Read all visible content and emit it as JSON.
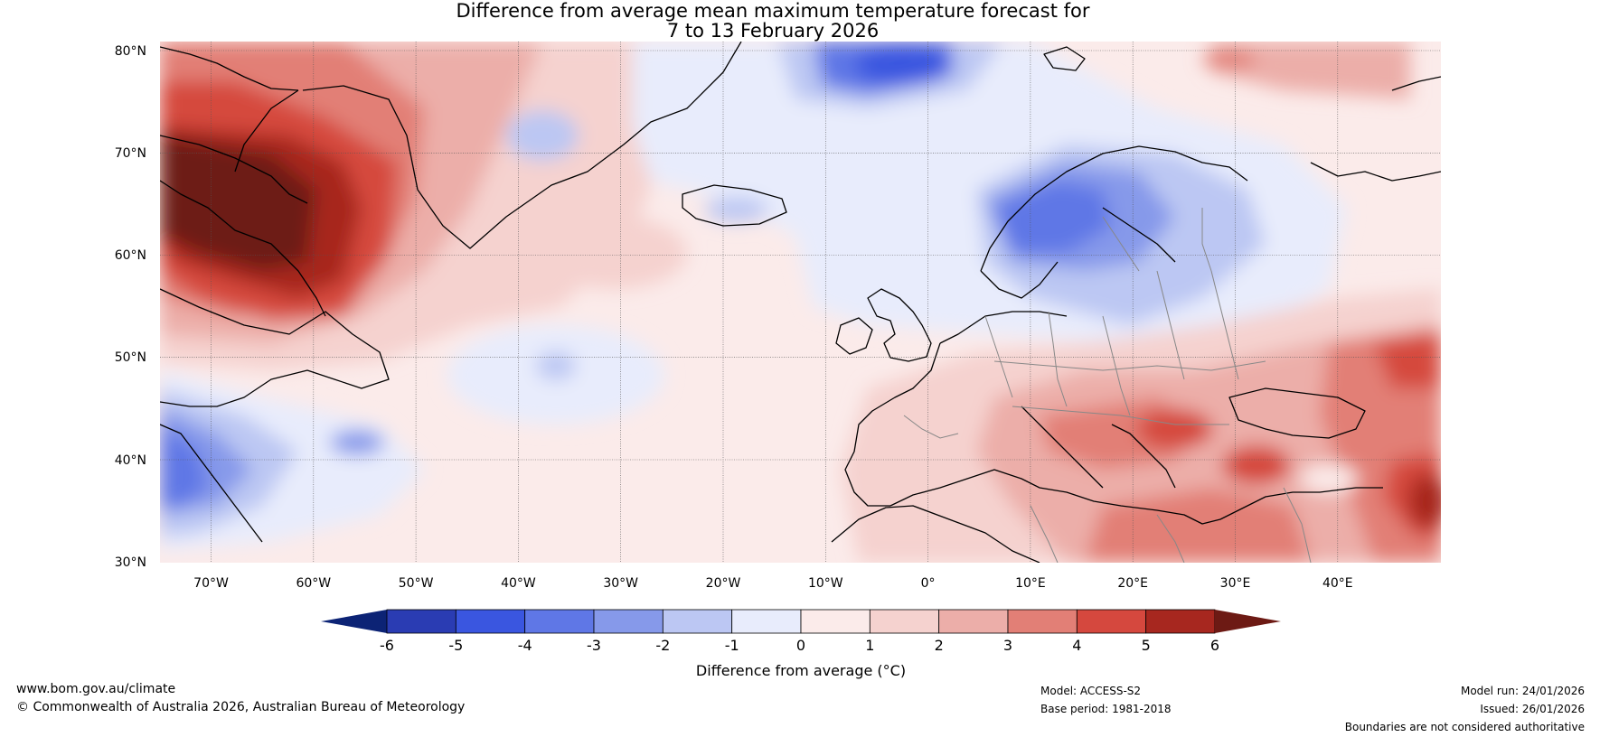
{
  "title": {
    "line1": "Difference from average mean maximum temperature forecast for",
    "line2": "7 to 13 February 2026"
  },
  "map": {
    "latitude_labels": [
      "80°N",
      "70°N",
      "60°N",
      "50°N",
      "40°N",
      "30°N"
    ],
    "longitude_labels": [
      "70°W",
      "60°W",
      "50°W",
      "40°W",
      "30°W",
      "20°W",
      "10°W",
      "0°",
      "10°E",
      "20°E",
      "30°E",
      "40°E"
    ],
    "extent": {
      "lon_min": -75,
      "lon_max": 50,
      "lat_min": 30,
      "lat_max": 81
    }
  },
  "colorbar": {
    "label": "Difference from average (°C)",
    "ticks": [
      "-6",
      "-5",
      "-4",
      "-3",
      "-2",
      "-1",
      "0",
      "1",
      "2",
      "3",
      "4",
      "5",
      "6"
    ],
    "colors": [
      "#0c2375",
      "#2a3cb3",
      "#3a56e0",
      "#5f77e6",
      "#8699ea",
      "#bcc7f3",
      "#e8ecfc",
      "#fbebea",
      "#f5d2cf",
      "#ecaea9",
      "#e27f76",
      "#d5483e",
      "#a7271f",
      "#6d1a14"
    ]
  },
  "footer": {
    "website": "www.bom.gov.au/climate",
    "copyright": "© Commonwealth of Australia 2026, Australian Bureau of Meteorology",
    "model": "Model: ACCESS-S2",
    "base_period": "Base period: 1981-2018",
    "model_run": "Model run: 24/01/2026",
    "issued": "Issued: 26/01/2026",
    "disclaimer": "Boundaries are not considered authoritative"
  },
  "colors": {
    "land_outline": "#000000",
    "borders": "#888888",
    "gridline": "#555555"
  }
}
